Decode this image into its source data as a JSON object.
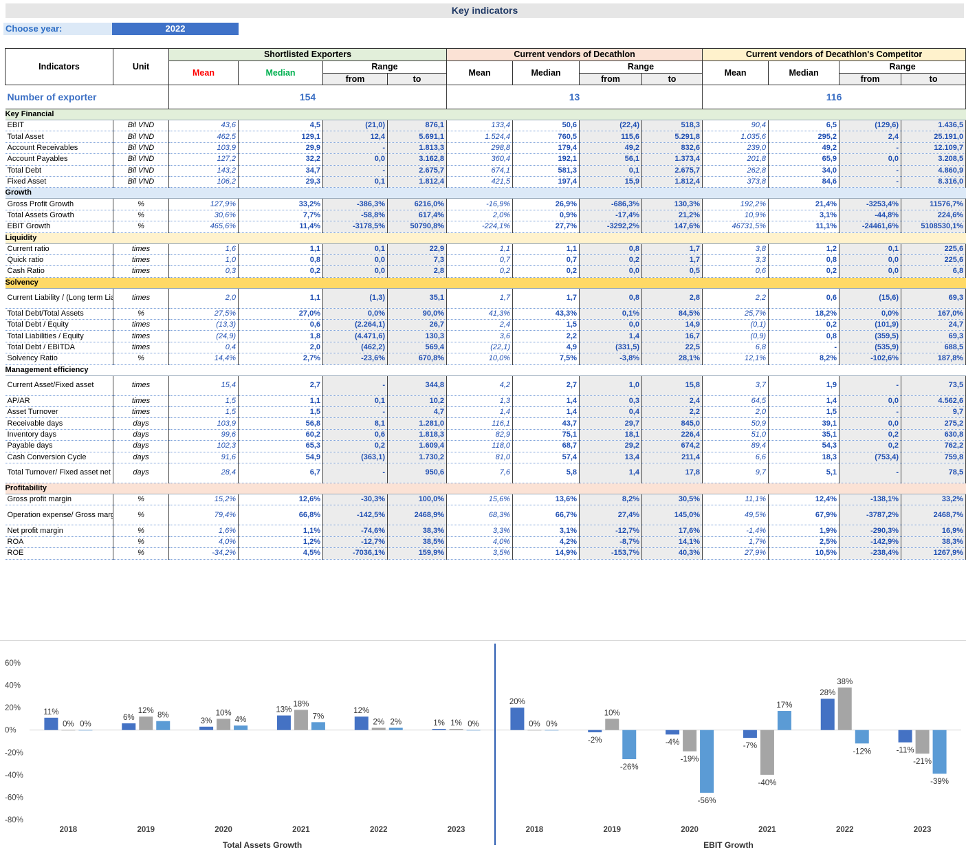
{
  "title": "Key indicators",
  "year": {
    "label": "Choose year:",
    "value": "2022"
  },
  "header": {
    "indicators": "Indicators",
    "unit": "Unit",
    "groups": [
      "Shortlisted Exporters",
      "Current vendors of Decathlon",
      "Current vendors of Decathlon's Competitor"
    ],
    "mean": "Mean",
    "median": "Median",
    "range": "Range",
    "from": "from",
    "to": "to"
  },
  "count": {
    "label": "Number of exporter",
    "values": [
      "154",
      "13",
      "116"
    ]
  },
  "sections": [
    {
      "title": "Key Financial",
      "theme": "keyfin",
      "rows": [
        {
          "name": "EBIT",
          "unit": "Bil VND",
          "v": [
            "43,6",
            "4,5",
            "(21,0)",
            "876,1",
            "133,4",
            "50,6",
            "(22,4)",
            "518,3",
            "90,4",
            "6,5",
            "(129,6)",
            "1.436,5"
          ]
        },
        {
          "name": "Total Asset",
          "unit": "Bil VND",
          "v": [
            "462,5",
            "129,1",
            "12,4",
            "5.691,1",
            "1.524,4",
            "760,5",
            "115,6",
            "5.291,8",
            "1.035,6",
            "295,2",
            "2,4",
            "25.191,0"
          ]
        },
        {
          "name": "Account Receivables",
          "unit": "Bil VND",
          "v": [
            "103,9",
            "29,9",
            "-",
            "1.813,3",
            "298,8",
            "179,4",
            "49,2",
            "832,6",
            "239,0",
            "49,2",
            "-",
            "12.109,7"
          ]
        },
        {
          "name": "Account Payables",
          "unit": "Bil VND",
          "v": [
            "127,2",
            "32,2",
            "0,0",
            "3.162,8",
            "360,4",
            "192,1",
            "56,1",
            "1.373,4",
            "201,8",
            "65,9",
            "0,0",
            "3.208,5"
          ]
        },
        {
          "name": "Total Debt",
          "unit": "Bil VND",
          "v": [
            "143,2",
            "34,7",
            "-",
            "2.675,7",
            "674,1",
            "581,3",
            "0,1",
            "2.675,7",
            "262,8",
            "34,0",
            "-",
            "4.860,9"
          ]
        },
        {
          "name": "Fixed Asset",
          "unit": "Bil VND",
          "v": [
            "106,2",
            "29,3",
            "0,1",
            "1.812,4",
            "421,5",
            "197,4",
            "15,9",
            "1.812,4",
            "373,8",
            "84,6",
            "-",
            "8.316,0"
          ]
        }
      ]
    },
    {
      "title": "Growth",
      "theme": "growth",
      "rows": [
        {
          "name": "Gross Profit Growth",
          "unit": "%",
          "v": [
            "127,9%",
            "33,2%",
            "-386,3%",
            "6216,0%",
            "-16,9%",
            "26,9%",
            "-686,3%",
            "130,3%",
            "192,2%",
            "21,4%",
            "-3253,4%",
            "11576,7%"
          ]
        },
        {
          "name": "Total Assets Growth",
          "unit": "%",
          "v": [
            "30,6%",
            "7,7%",
            "-58,8%",
            "617,4%",
            "2,0%",
            "0,9%",
            "-17,4%",
            "21,2%",
            "10,9%",
            "3,1%",
            "-44,8%",
            "224,6%"
          ]
        },
        {
          "name": "EBIT Growth",
          "unit": "%",
          "v": [
            "465,6%",
            "11,4%",
            "-3178,5%",
            "50790,8%",
            "-224,1%",
            "27,7%",
            "-3292,2%",
            "147,6%",
            "46731,5%",
            "11,1%",
            "-24461,6%",
            "5108530,1%"
          ]
        }
      ]
    },
    {
      "title": "Liquidity",
      "theme": "liq",
      "rows": [
        {
          "name": "Current ratio",
          "unit": "times",
          "v": [
            "1,6",
            "1,1",
            "0,1",
            "22,9",
            "1,1",
            "1,1",
            "0,8",
            "1,7",
            "3,8",
            "1,2",
            "0,1",
            "225,6"
          ]
        },
        {
          "name": "Quick ratio",
          "unit": "times",
          "v": [
            "1,0",
            "0,8",
            "0,0",
            "7,3",
            "0,7",
            "0,7",
            "0,2",
            "1,7",
            "3,3",
            "0,8",
            "0,0",
            "225,6"
          ]
        },
        {
          "name": "Cash Ratio",
          "unit": "times",
          "v": [
            "0,3",
            "0,2",
            "0,0",
            "2,8",
            "0,2",
            "0,2",
            "0,0",
            "0,5",
            "0,6",
            "0,2",
            "0,0",
            "6,8"
          ]
        }
      ]
    },
    {
      "title": "Solvency",
      "theme": "solv",
      "rows": [
        {
          "name": "Current Liability / (Long term Liability+ Equity)",
          "unit": "times",
          "tall": true,
          "v": [
            "2,0",
            "1,1",
            "(1,3)",
            "35,1",
            "1,7",
            "1,7",
            "0,8",
            "2,8",
            "2,2",
            "0,6",
            "(15,6)",
            "69,3"
          ]
        },
        {
          "name": "Total Debt/Total Assets",
          "unit": "%",
          "v": [
            "27,5%",
            "27,0%",
            "0,0%",
            "90,0%",
            "41,3%",
            "43,3%",
            "0,1%",
            "84,5%",
            "25,7%",
            "18,2%",
            "0,0%",
            "167,0%"
          ]
        },
        {
          "name": "Total Debt / Equity",
          "unit": "times",
          "v": [
            "(13,3)",
            "0,6",
            "(2.264,1)",
            "26,7",
            "2,4",
            "1,5",
            "0,0",
            "14,9",
            "(0,1)",
            "0,2",
            "(101,9)",
            "24,7"
          ]
        },
        {
          "name": "Total Liabilities / Equity",
          "unit": "times",
          "v": [
            "(24,9)",
            "1,8",
            "(4.471,6)",
            "130,3",
            "3,6",
            "2,2",
            "1,4",
            "16,7",
            "(0,9)",
            "0,8",
            "(359,5)",
            "69,3"
          ]
        },
        {
          "name": "Total Debt / EBITDA",
          "unit": "times",
          "v": [
            "0,4",
            "2,0",
            "(462,2)",
            "569,4",
            "(22,1)",
            "4,9",
            "(331,5)",
            "22,5",
            "6,8",
            "-",
            "(535,9)",
            "688,5"
          ]
        },
        {
          "name": "Solvency Ratio",
          "unit": "%",
          "v": [
            "14,4%",
            "2,7%",
            "-23,6%",
            "670,8%",
            "10,0%",
            "7,5%",
            "-3,8%",
            "28,1%",
            "12,1%",
            "8,2%",
            "-102,6%",
            "187,8%"
          ]
        }
      ]
    },
    {
      "title": "Management efficiency",
      "theme": "mgmt",
      "rows": [
        {
          "name": "Current Asset/Fixed asset",
          "unit": "times",
          "tall": true,
          "v": [
            "15,4",
            "2,7",
            "-",
            "344,8",
            "4,2",
            "2,7",
            "1,0",
            "15,8",
            "3,7",
            "1,9",
            "-",
            "73,5"
          ]
        },
        {
          "name": "AP/AR",
          "unit": "times",
          "v": [
            "1,5",
            "1,1",
            "0,1",
            "10,2",
            "1,3",
            "1,4",
            "0,3",
            "2,4",
            "64,5",
            "1,4",
            "0,0",
            "4.562,6"
          ]
        },
        {
          "name": "Asset Turnover",
          "unit": "times",
          "v": [
            "1,5",
            "1,5",
            "-",
            "4,7",
            "1,4",
            "1,4",
            "0,4",
            "2,2",
            "2,0",
            "1,5",
            "-",
            "9,7"
          ]
        },
        {
          "name": "Receivable days",
          "unit": "days",
          "v": [
            "103,9",
            "56,8",
            "8,1",
            "1.281,0",
            "116,1",
            "43,7",
            "29,7",
            "845,0",
            "50,9",
            "39,1",
            "0,0",
            "275,2"
          ]
        },
        {
          "name": "Inventory days",
          "unit": "days",
          "v": [
            "99,6",
            "60,2",
            "0,6",
            "1.818,3",
            "82,9",
            "75,1",
            "18,1",
            "226,4",
            "51,0",
            "35,1",
            "0,2",
            "630,8"
          ]
        },
        {
          "name": "Payable days",
          "unit": "days",
          "v": [
            "102,3",
            "65,3",
            "0,2",
            "1.609,4",
            "118,0",
            "68,7",
            "29,2",
            "674,2",
            "89,4",
            "54,3",
            "0,2",
            "762,2"
          ]
        },
        {
          "name": "Cash Conversion Cycle",
          "unit": "days",
          "v": [
            "91,6",
            "54,9",
            "(363,1)",
            "1.730,2",
            "81,0",
            "57,4",
            "13,4",
            "211,4",
            "6,6",
            "18,3",
            "(753,4)",
            "759,8"
          ]
        },
        {
          "name": "Total Turnover/ Fixed asset net book value",
          "unit": "days",
          "tall": true,
          "v": [
            "28,4",
            "6,7",
            "-",
            "950,6",
            "7,6",
            "5,8",
            "1,4",
            "17,8",
            "9,7",
            "5,1",
            "-",
            "78,5"
          ]
        }
      ]
    },
    {
      "title": "Profitability",
      "theme": "prof",
      "rows": [
        {
          "name": "Gross profit margin",
          "unit": "%",
          "v": [
            "15,2%",
            "12,6%",
            "-30,3%",
            "100,0%",
            "15,6%",
            "13,6%",
            "8,2%",
            "30,5%",
            "11,1%",
            "12,4%",
            "-138,1%",
            "33,2%"
          ]
        },
        {
          "name": "Operation expense/ Gross margin",
          "unit": "%",
          "tall": true,
          "v": [
            "79,4%",
            "66,8%",
            "-142,5%",
            "2468,9%",
            "68,3%",
            "66,7%",
            "27,4%",
            "145,0%",
            "49,5%",
            "67,9%",
            "-3787,2%",
            "2468,7%"
          ]
        },
        {
          "name": "Net profit margin",
          "unit": "%",
          "v": [
            "1,6%",
            "1,1%",
            "-74,6%",
            "38,3%",
            "3,3%",
            "3,1%",
            "-12,7%",
            "17,6%",
            "-1,4%",
            "1,9%",
            "-290,3%",
            "16,9%"
          ]
        },
        {
          "name": "ROA",
          "unit": "%",
          "v": [
            "4,0%",
            "1,2%",
            "-12,7%",
            "38,5%",
            "4,0%",
            "4,2%",
            "-8,7%",
            "14,1%",
            "1,7%",
            "2,5%",
            "-142,9%",
            "38,3%"
          ]
        },
        {
          "name": "ROE",
          "unit": "%",
          "v": [
            "-34,2%",
            "4,5%",
            "-7036,1%",
            "159,9%",
            "3,5%",
            "14,9%",
            "-153,7%",
            "40,3%",
            "27,9%",
            "10,5%",
            "-238,4%",
            "1267,9%"
          ]
        }
      ]
    }
  ],
  "chart_data": [
    {
      "type": "bar",
      "xlabel": "Total Assets Growth",
      "categories": [
        "2018",
        "2019",
        "2020",
        "2021",
        "2022",
        "2023"
      ],
      "ylim": [
        -80,
        60
      ],
      "yticks": [
        "60%",
        "40%",
        "20%",
        "0%",
        "-20%",
        "-40%",
        "-60%",
        "-80%"
      ],
      "series": [
        {
          "values": [
            11,
            6,
            3,
            13,
            12,
            1
          ],
          "labels": [
            "11%",
            "6%",
            "3%",
            "13%",
            "12%",
            "1%"
          ]
        },
        {
          "values": [
            0,
            12,
            10,
            18,
            2,
            1
          ],
          "labels": [
            "0%",
            "12%",
            "10%",
            "18%",
            "2%",
            "1%"
          ]
        },
        {
          "values": [
            0,
            8,
            4,
            7,
            2,
            0
          ],
          "labels": [
            "0%",
            "8%",
            "4%",
            "7%",
            "2%",
            "0%"
          ]
        }
      ]
    },
    {
      "type": "bar",
      "xlabel": "EBIT Growth",
      "categories": [
        "2018",
        "2019",
        "2020",
        "2021",
        "2022",
        "2023"
      ],
      "ylim": [
        -80,
        60
      ],
      "series": [
        {
          "values": [
            20,
            -2,
            -4,
            -7,
            28,
            -11
          ],
          "labels": [
            "20%",
            "-2%",
            "-4%",
            "-7%",
            "28%",
            "-11%"
          ]
        },
        {
          "values": [
            0,
            10,
            -19,
            -40,
            38,
            -21
          ],
          "labels": [
            "0%",
            "10%",
            "-19%",
            "-40%",
            "38%",
            "-21%"
          ]
        },
        {
          "values": [
            0,
            -26,
            -56,
            17,
            -12,
            -39
          ],
          "labels": [
            "0%",
            "-26%",
            "-56%",
            "17%",
            "-12%",
            "-39%"
          ]
        }
      ]
    }
  ],
  "colors": {
    "s1": "#4472c4",
    "s2": "#a5a5a5",
    "s3": "#5b9bd5",
    "axis": "#d9d9d9",
    "divider": "#2f5fb3"
  }
}
